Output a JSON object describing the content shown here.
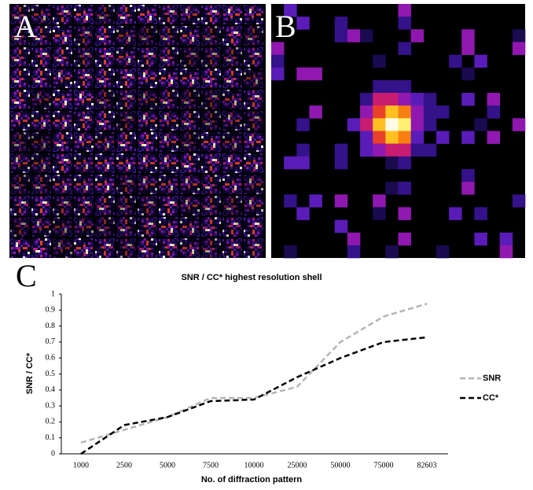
{
  "panels": [
    {
      "label": "A"
    },
    {
      "label": "B"
    },
    {
      "label": "C"
    }
  ],
  "chart_data": {
    "type": "line",
    "title": "SNR / CC* highest resolution shell",
    "y_label": "SNR / CC*",
    "x_label": "No. of diffraction pattern",
    "categories": [
      "1000",
      "2500",
      "5000",
      "7500",
      "10000",
      "25000",
      "50000",
      "75000",
      "82603"
    ],
    "series": [
      {
        "name": "SNR",
        "color": "#b4b4b4",
        "values": [
          0.07,
          0.15,
          0.23,
          0.35,
          0.35,
          0.42,
          0.7,
          0.86,
          0.94
        ]
      },
      {
        "name": "CC*",
        "color": "#000000",
        "values": [
          0.0,
          0.18,
          0.23,
          0.33,
          0.34,
          0.48,
          0.6,
          0.7,
          0.73
        ]
      }
    ],
    "ylim": [
      0,
      1
    ],
    "yticks": [
      0,
      0.1,
      0.2,
      0.3,
      0.4,
      0.5,
      0.6,
      0.7,
      0.8,
      0.9,
      1
    ],
    "legend": "right"
  }
}
